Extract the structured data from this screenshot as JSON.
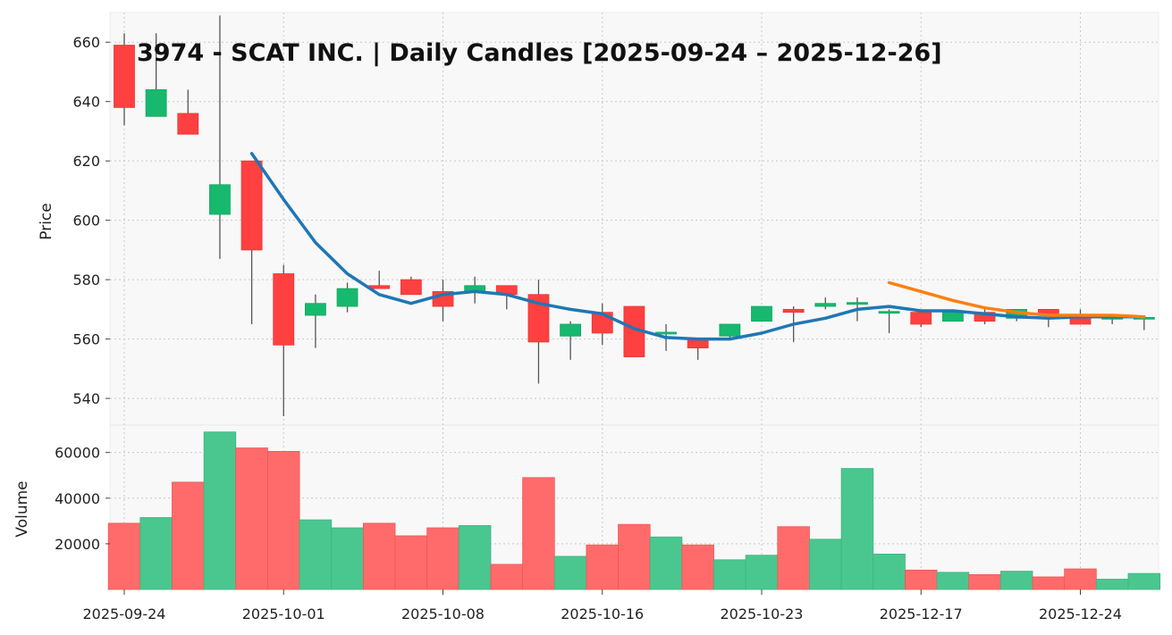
{
  "chart_data": {
    "type": "candlestick",
    "title": "3974 - SCAT INC. | Daily Candles [2025-09-24 – 2025-12-26]",
    "price_axis": {
      "label": "Price",
      "ylim": [
        531,
        670
      ],
      "ticks": [
        540,
        560,
        580,
        600,
        620,
        640,
        660
      ]
    },
    "volume_axis": {
      "label": "Volume",
      "ylim": [
        0,
        72000
      ],
      "ticks": [
        20000,
        40000,
        60000
      ]
    },
    "x_ticks": [
      {
        "index": 0,
        "label": "2025-09-24"
      },
      {
        "index": 5,
        "label": "2025-10-01"
      },
      {
        "index": 10,
        "label": "2025-10-08"
      },
      {
        "index": 15,
        "label": "2025-10-16"
      },
      {
        "index": 20,
        "label": "2025-10-23"
      },
      {
        "index": 25,
        "label": "2025-12-17"
      },
      {
        "index": 30,
        "label": "2025-12-24"
      }
    ],
    "grid": true,
    "colors": {
      "up": "#16b96e",
      "down": "#ff4040",
      "vol_up": "#4ac78e",
      "vol_down": "#ff6b6b",
      "ma1": "#1f77b4",
      "ma2": "#ff7f0e",
      "wick": "#555555",
      "panel_bg": "#f8f8f8"
    },
    "candles": [
      {
        "o": 659,
        "h": 663,
        "l": 632,
        "c": 638,
        "v": 29000
      },
      {
        "o": 635,
        "h": 663,
        "l": 635,
        "c": 644,
        "v": 31500
      },
      {
        "o": 636,
        "h": 644,
        "l": 629,
        "c": 629,
        "v": 47000
      },
      {
        "o": 602,
        "h": 669,
        "l": 587,
        "c": 612,
        "v": 69000
      },
      {
        "o": 620,
        "h": 620,
        "l": 565,
        "c": 590,
        "v": 62000
      },
      {
        "o": 582,
        "h": 585,
        "l": 534,
        "c": 558,
        "v": 60500
      },
      {
        "o": 568,
        "h": 575,
        "l": 557,
        "c": 572,
        "v": 30500
      },
      {
        "o": 571,
        "h": 579,
        "l": 569,
        "c": 577,
        "v": 27000
      },
      {
        "o": 578,
        "h": 583,
        "l": 577,
        "c": 577,
        "v": 29000
      },
      {
        "o": 580,
        "h": 581,
        "l": 575,
        "c": 575,
        "v": 23500
      },
      {
        "o": 576,
        "h": 580,
        "l": 566,
        "c": 571,
        "v": 27000
      },
      {
        "o": 576,
        "h": 581,
        "l": 572,
        "c": 578,
        "v": 28000
      },
      {
        "o": 578,
        "h": 578,
        "l": 570,
        "c": 575,
        "v": 11000
      },
      {
        "o": 575,
        "h": 580,
        "l": 545,
        "c": 559,
        "v": 49000
      },
      {
        "o": 561,
        "h": 566,
        "l": 553,
        "c": 565,
        "v": 14500
      },
      {
        "o": 569,
        "h": 572,
        "l": 558,
        "c": 562,
        "v": 19500
      },
      {
        "o": 571,
        "h": 571,
        "l": 554,
        "c": 554,
        "v": 28500
      },
      {
        "o": 562,
        "h": 565,
        "l": 556,
        "c": 562,
        "v": 23000
      },
      {
        "o": 560,
        "h": 560,
        "l": 553,
        "c": 557,
        "v": 19500
      },
      {
        "o": 561,
        "h": 565,
        "l": 560,
        "c": 565,
        "v": 13000
      },
      {
        "o": 566,
        "h": 571,
        "l": 566,
        "c": 571,
        "v": 15000
      },
      {
        "o": 570,
        "h": 571,
        "l": 559,
        "c": 569,
        "v": 27500
      },
      {
        "o": 571,
        "h": 574,
        "l": 570,
        "c": 572,
        "v": 22000
      },
      {
        "o": 572,
        "h": 574,
        "l": 566,
        "c": 572,
        "v": 53000
      },
      {
        "o": 569,
        "h": 570,
        "l": 562,
        "c": 569,
        "v": 15500
      },
      {
        "o": 569,
        "h": 569,
        "l": 564,
        "c": 565,
        "v": 8500
      },
      {
        "o": 566,
        "h": 570,
        "l": 566,
        "c": 569,
        "v": 7500
      },
      {
        "o": 569,
        "h": 570,
        "l": 565,
        "c": 566,
        "v": 6500
      },
      {
        "o": 567,
        "h": 570,
        "l": 566,
        "c": 570,
        "v": 8000
      },
      {
        "o": 570,
        "h": 570,
        "l": 564,
        "c": 568,
        "v": 5500
      },
      {
        "o": 568,
        "h": 570,
        "l": 565,
        "c": 565,
        "v": 9000
      },
      {
        "o": 567,
        "h": 568,
        "l": 565,
        "c": 567,
        "v": 4500
      },
      {
        "o": 567,
        "h": 567,
        "l": 563,
        "c": 567,
        "v": 7000
      }
    ],
    "ma_lines": [
      {
        "color_key": "ma1",
        "start_index": 4,
        "values": [
          622.5,
          607,
          592.5,
          582,
          575,
          572,
          575,
          576,
          575,
          572,
          570,
          568.5,
          563.5,
          560.5,
          560,
          560,
          562,
          565,
          567,
          570,
          571,
          569.5,
          569.5,
          568.5,
          567.5,
          567,
          567.5,
          567.5,
          567.5
        ]
      },
      {
        "color_key": "ma2",
        "start_index": 24,
        "values": [
          579,
          576,
          573,
          570.5,
          569,
          568,
          568,
          568,
          567.5
        ]
      }
    ]
  }
}
